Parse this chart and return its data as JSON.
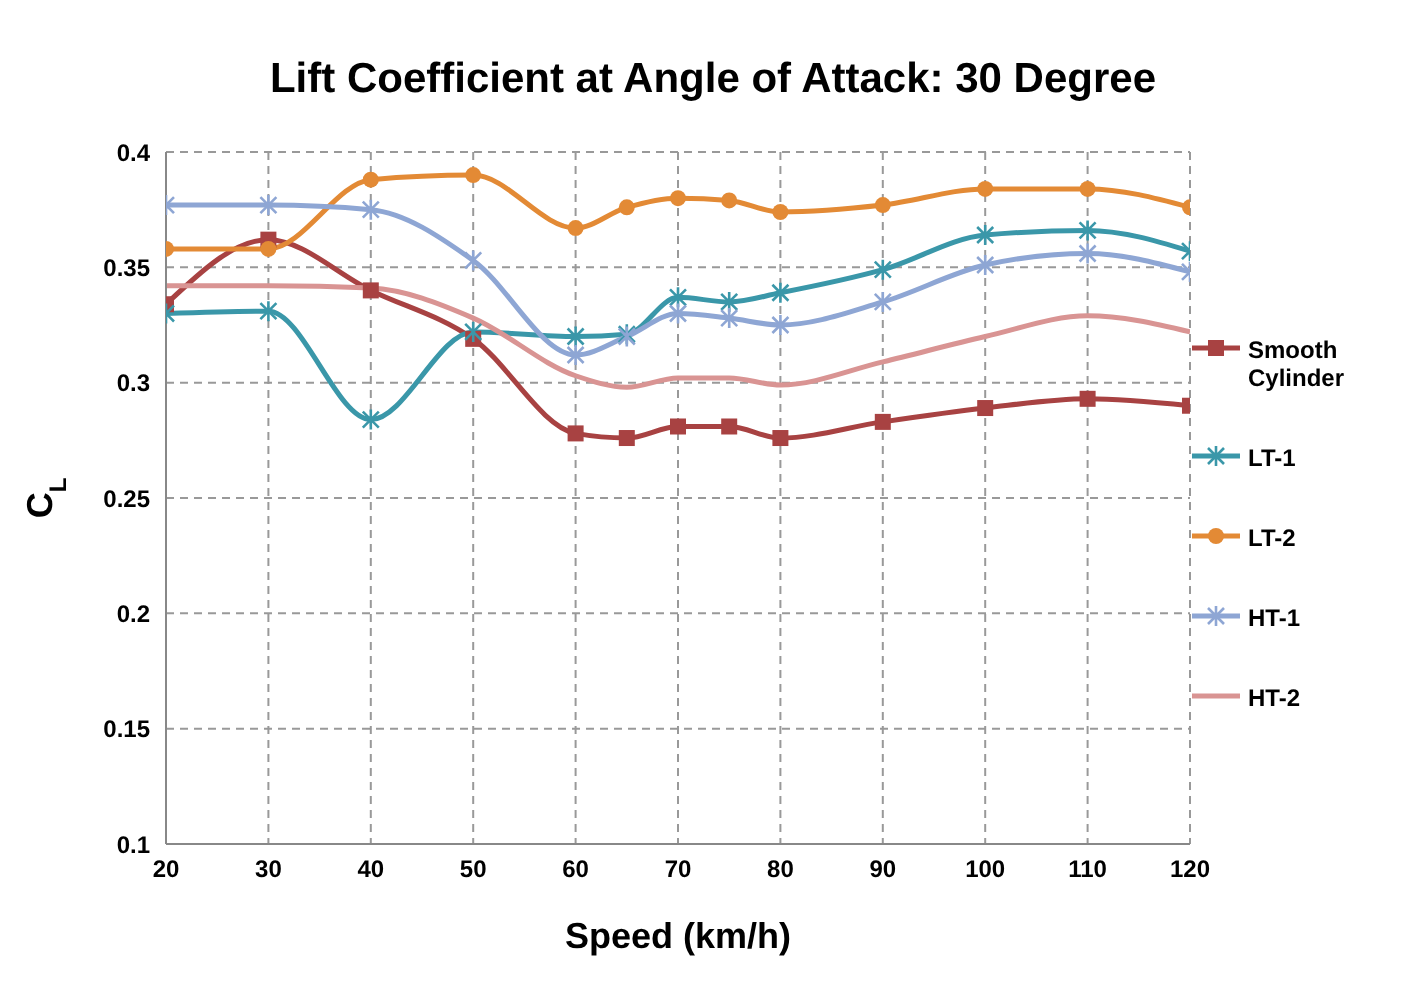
{
  "chart_data": {
    "type": "line",
    "title": "Lift Coefficient at Angle of Attack: 30 Degree",
    "xlabel": "Speed (km/h)",
    "ylabel": "C$_{L}$",
    "x": [
      20,
      30,
      40,
      50,
      60,
      65,
      70,
      75,
      80,
      90,
      100,
      110,
      120
    ],
    "xlim": [
      20,
      120
    ],
    "xticks": [
      20,
      30,
      40,
      50,
      60,
      70,
      80,
      90,
      100,
      110,
      120
    ],
    "ylim": [
      0.1,
      0.4
    ],
    "yticks": [
      0.1,
      0.15,
      0.2,
      0.25,
      0.3,
      0.35,
      0.4
    ],
    "grid": true,
    "legend": "right",
    "series": [
      {
        "name": "Smooth Cylinder",
        "color": "#a84242",
        "marker": "square",
        "values": [
          0.334,
          0.362,
          0.34,
          0.319,
          0.278,
          0.276,
          0.281,
          0.281,
          0.276,
          0.283,
          0.289,
          0.293,
          0.29
        ]
      },
      {
        "name": "LT-1",
        "color": "#3a97a9",
        "marker": "cross",
        "values": [
          0.33,
          0.331,
          0.284,
          0.322,
          0.32,
          0.321,
          0.337,
          0.335,
          0.339,
          0.349,
          0.364,
          0.366,
          0.357
        ]
      },
      {
        "name": "LT-2",
        "color": "#e38a35",
        "marker": "circle",
        "values": [
          0.358,
          0.358,
          0.388,
          0.39,
          0.367,
          0.376,
          0.38,
          0.379,
          0.374,
          0.377,
          0.384,
          0.384,
          0.376
        ]
      },
      {
        "name": "HT-1",
        "color": "#8ea6d4",
        "marker": "cross",
        "values": [
          0.377,
          0.377,
          0.375,
          0.353,
          0.312,
          0.32,
          0.33,
          0.328,
          0.325,
          0.335,
          0.351,
          0.356,
          0.348
        ]
      },
      {
        "name": "HT-2",
        "color": "#d99493",
        "marker": "none",
        "values": [
          0.342,
          0.342,
          0.341,
          0.328,
          0.303,
          0.298,
          0.302,
          0.302,
          0.299,
          0.309,
          0.32,
          0.329,
          0.322
        ]
      }
    ]
  }
}
